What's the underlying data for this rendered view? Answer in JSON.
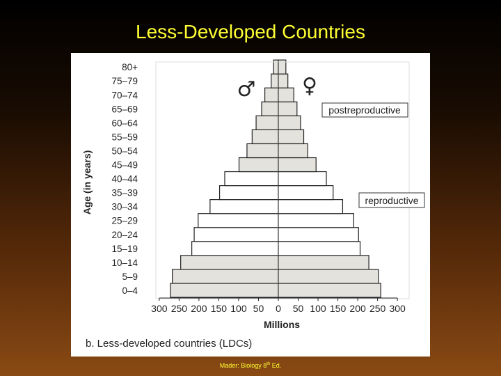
{
  "slide": {
    "title": "Less-Developed Countries",
    "credit_prefix": "Mader: Biology 8",
    "credit_sup": "th",
    "credit_suffix": " Ed."
  },
  "figure": {
    "caption": "b. Less-developed countries (LDCs)",
    "male_symbol": "♂",
    "female_symbol": "♀"
  },
  "colors": {
    "postreproductive_fill": "#e4e2dc",
    "reproductive_fill": "#ffffff",
    "prereproductive_fill": "#e4e2dc",
    "bar_stroke": "#222222",
    "title_color": "#ffff33"
  },
  "chart_data": {
    "type": "bar",
    "orientation": "horizontal",
    "subtype": "population-pyramid",
    "xlabel": "Millions",
    "ylabel": "Age (in years)",
    "xlim": [
      -300,
      300
    ],
    "x_ticks": [
      -300,
      -250,
      -200,
      -150,
      -100,
      -50,
      0,
      50,
      100,
      150,
      200,
      250,
      300
    ],
    "x_tick_labels": [
      "300",
      "250",
      "200",
      "150",
      "100",
      "50",
      "0",
      "50",
      "100",
      "150",
      "200",
      "250",
      "300"
    ],
    "categories": [
      "0–4",
      "5–9",
      "10–14",
      "15–19",
      "20–24",
      "25–29",
      "30–34",
      "35–39",
      "40–44",
      "45–49",
      "50–54",
      "55–59",
      "60–64",
      "65–69",
      "70–74",
      "75–79",
      "80+"
    ],
    "groups": [
      "pre",
      "pre",
      "pre",
      "rep",
      "rep",
      "rep",
      "rep",
      "rep",
      "rep",
      "post",
      "post",
      "post",
      "post",
      "post",
      "post",
      "post",
      "post"
    ],
    "series": [
      {
        "name": "♂",
        "values": [
          272,
          267,
          246,
          218,
          212,
          202,
          172,
          148,
          135,
          99,
          79,
          66,
          56,
          42,
          34,
          18,
          12
        ]
      },
      {
        "name": "♀",
        "values": [
          258,
          252,
          228,
          206,
          202,
          190,
          162,
          138,
          121,
          95,
          74,
          64,
          56,
          47,
          39,
          24,
          19
        ]
      }
    ],
    "annotations": [
      {
        "text": "postreproductive",
        "group": "post"
      },
      {
        "text": "reproductive",
        "group": "rep"
      }
    ],
    "grid": false,
    "legend": "none"
  }
}
